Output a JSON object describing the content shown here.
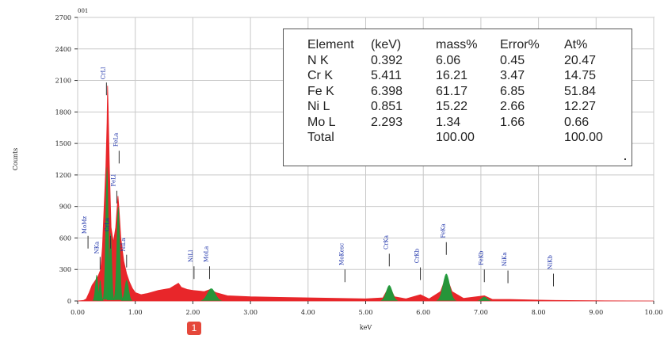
{
  "chart_data": {
    "type": "area",
    "title": "001",
    "xlabel": "keV",
    "ylabel": "Counts",
    "xlim": [
      0,
      10
    ],
    "ylim": [
      0,
      2700
    ],
    "x_ticks": [
      "0.00",
      "1.00",
      "2.00",
      "3.00",
      "4.00",
      "5.00",
      "6.00",
      "7.00",
      "8.00",
      "9.00",
      "10.00"
    ],
    "y_ticks": [
      "0",
      "300",
      "600",
      "900",
      "1200",
      "1500",
      "1800",
      "2100",
      "2400",
      "2700"
    ],
    "grid": true,
    "colors": {
      "spectrum": "#e8262a",
      "peak_fill": "#1b9b3a",
      "label": "#1a2fa8"
    },
    "spectrum_points": [
      [
        0.0,
        0
      ],
      [
        0.1,
        5
      ],
      [
        0.15,
        20
      ],
      [
        0.2,
        80
      ],
      [
        0.25,
        150
      ],
      [
        0.3,
        190
      ],
      [
        0.35,
        230
      ],
      [
        0.4,
        300
      ],
      [
        0.43,
        520
      ],
      [
        0.46,
        900
      ],
      [
        0.49,
        1280
      ],
      [
        0.51,
        1700
      ],
      [
        0.52,
        2050
      ],
      [
        0.53,
        1850
      ],
      [
        0.55,
        1300
      ],
      [
        0.58,
        700
      ],
      [
        0.62,
        560
      ],
      [
        0.66,
        700
      ],
      [
        0.7,
        1000
      ],
      [
        0.72,
        870
      ],
      [
        0.75,
        600
      ],
      [
        0.8,
        380
      ],
      [
        0.85,
        260
      ],
      [
        0.9,
        180
      ],
      [
        0.95,
        120
      ],
      [
        1.0,
        80
      ],
      [
        1.1,
        60
      ],
      [
        1.2,
        70
      ],
      [
        1.4,
        100
      ],
      [
        1.6,
        120
      ],
      [
        1.75,
        170
      ],
      [
        1.8,
        130
      ],
      [
        1.9,
        110
      ],
      [
        2.0,
        100
      ],
      [
        2.2,
        90
      ],
      [
        2.3,
        110
      ],
      [
        2.4,
        80
      ],
      [
        2.6,
        50
      ],
      [
        3.0,
        40
      ],
      [
        3.5,
        35
      ],
      [
        4.0,
        30
      ],
      [
        4.5,
        25
      ],
      [
        5.0,
        20
      ],
      [
        5.3,
        30
      ],
      [
        5.41,
        140
      ],
      [
        5.5,
        40
      ],
      [
        5.7,
        20
      ],
      [
        5.95,
        60
      ],
      [
        6.1,
        20
      ],
      [
        6.3,
        90
      ],
      [
        6.4,
        240
      ],
      [
        6.5,
        90
      ],
      [
        6.7,
        25
      ],
      [
        7.06,
        50
      ],
      [
        7.2,
        15
      ],
      [
        7.5,
        15
      ],
      [
        8.0,
        8
      ],
      [
        8.3,
        5
      ],
      [
        9.0,
        2
      ],
      [
        10.0,
        0
      ]
    ],
    "green_peaks": [
      {
        "center": 0.33,
        "width": 0.025,
        "height": 250
      },
      {
        "center": 0.392,
        "width": 0.02,
        "height": 200
      },
      {
        "center": 0.51,
        "width": 0.025,
        "height": 1280
      },
      {
        "center": 0.573,
        "width": 0.022,
        "height": 650
      },
      {
        "center": 0.705,
        "width": 0.028,
        "height": 900
      },
      {
        "center": 0.851,
        "width": 0.035,
        "height": 200
      },
      {
        "center": 2.32,
        "width": 0.07,
        "height": 120
      },
      {
        "center": 5.41,
        "width": 0.055,
        "height": 150
      },
      {
        "center": 6.4,
        "width": 0.06,
        "height": 260
      },
      {
        "center": 7.06,
        "width": 0.05,
        "height": 40
      }
    ],
    "peak_labels": [
      {
        "text": "MoMz",
        "x": 0.18,
        "y_top": 620,
        "y_label": 640
      },
      {
        "text": "NKa",
        "x": 0.39,
        "y_top": 420,
        "y_label": 450
      },
      {
        "text": "CrLl",
        "x": 0.5,
        "y_top": 2080,
        "y_label": 2110
      },
      {
        "text": "CrLa",
        "x": 0.57,
        "y_top": 620,
        "y_label": 660
      },
      {
        "text": "FeLa",
        "x": 0.72,
        "y_top": 1430,
        "y_label": 1470
      },
      {
        "text": "FeLl",
        "x": 0.68,
        "y_top": 1050,
        "y_label": 1090
      },
      {
        "text": "NiLa",
        "x": 0.85,
        "y_top": 440,
        "y_label": 470
      },
      {
        "text": "NiLl",
        "x": 2.02,
        "y_top": 330,
        "y_label": 370
      },
      {
        "text": "MoLa",
        "x": 2.29,
        "y_top": 330,
        "y_label": 370
      },
      {
        "text": "MoKesc",
        "x": 4.64,
        "y_top": 300,
        "y_label": 340
      },
      {
        "text": "CrKa",
        "x": 5.41,
        "y_top": 450,
        "y_label": 490
      },
      {
        "text": "CrKb",
        "x": 5.95,
        "y_top": 320,
        "y_label": 360
      },
      {
        "text": "FeKa",
        "x": 6.4,
        "y_top": 560,
        "y_label": 600
      },
      {
        "text": "FeKb",
        "x": 7.06,
        "y_top": 300,
        "y_label": 340
      },
      {
        "text": "NiKa",
        "x": 7.47,
        "y_top": 290,
        "y_label": 330
      },
      {
        "text": "NiKb",
        "x": 8.26,
        "y_top": 260,
        "y_label": 300
      }
    ],
    "table": {
      "columns": [
        "Element",
        "(keV)",
        "mass%",
        "Error%",
        "At%"
      ],
      "rows": [
        [
          "N  K",
          "0.392",
          "6.06",
          "0.45",
          "20.47"
        ],
        [
          "Cr K",
          "5.411",
          "16.21",
          "3.47",
          "14.75"
        ],
        [
          "Fe K",
          "6.398",
          "61.17",
          "6.85",
          "51.84"
        ],
        [
          "Ni L",
          "0.851",
          "15.22",
          "2.66",
          "12.27"
        ],
        [
          "Mo L",
          "2.293",
          "1.34",
          "1.66",
          "0.66"
        ],
        [
          "Total",
          "",
          "100.00",
          "",
          "100.00"
        ]
      ]
    }
  },
  "badge": {
    "label": "1"
  }
}
